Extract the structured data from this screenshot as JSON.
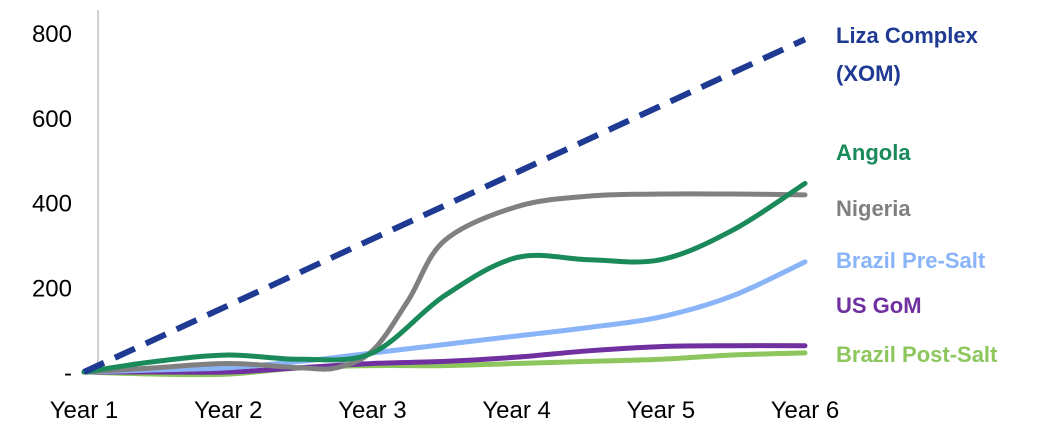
{
  "chart_data": {
    "type": "line",
    "categories": [
      "Year 1",
      "Year 2",
      "Year 3",
      "Year 4",
      "Year 5",
      "Year 6"
    ],
    "y_tick_labels": [
      "-",
      "200",
      "400",
      "600",
      "800"
    ],
    "y_tick_values": [
      0,
      200,
      400,
      600,
      800
    ],
    "ylim": [
      0,
      800
    ],
    "grid": false,
    "legend": "direct labels at right end of each line",
    "series": [
      {
        "name": "Liza Complex (XOM)",
        "label_lines": [
          "Liza Complex",
          "(XOM)"
        ],
        "color": "#1F3A93",
        "style": "dashed",
        "x": [
          1,
          6
        ],
        "y": [
          0,
          785
        ]
      },
      {
        "name": "Angola",
        "label_lines": [
          "Angola"
        ],
        "color": "#1B8A5A",
        "style": "solid",
        "x": [
          1,
          1.5,
          2,
          2.5,
          3,
          3.5,
          4,
          4.5,
          5,
          5.5,
          6
        ],
        "y": [
          0,
          25,
          40,
          30,
          45,
          180,
          270,
          265,
          265,
          335,
          445
        ]
      },
      {
        "name": "Nigeria",
        "label_lines": [
          "Nigeria"
        ],
        "color": "#808080",
        "style": "solid",
        "x": [
          1,
          1.5,
          2,
          2.5,
          2.75,
          3,
          3.25,
          3.5,
          4,
          4.5,
          5,
          5.5,
          6
        ],
        "y": [
          0,
          10,
          20,
          10,
          10,
          50,
          170,
          310,
          390,
          415,
          420,
          420,
          418
        ]
      },
      {
        "name": "Brazil Pre-Salt",
        "label_lines": [
          "Brazil Pre-Salt"
        ],
        "color": "#8AB4F8",
        "style": "solid",
        "x": [
          1,
          1.5,
          2,
          2.5,
          3,
          3.5,
          4,
          4.5,
          5,
          5.5,
          6
        ],
        "y": [
          0,
          5,
          10,
          25,
          45,
          65,
          85,
          105,
          130,
          180,
          260
        ]
      },
      {
        "name": "US GoM",
        "label_lines": [
          "US GoM"
        ],
        "color": "#7030A0",
        "style": "solid",
        "x": [
          1,
          1.5,
          2,
          2.5,
          3,
          3.5,
          4,
          4.5,
          5,
          5.5,
          6
        ],
        "y": [
          0,
          0,
          0,
          10,
          20,
          25,
          35,
          50,
          60,
          62,
          62
        ]
      },
      {
        "name": "Brazil Post-Salt",
        "label_lines": [
          "Brazil Post-Salt"
        ],
        "color": "#8CC65C",
        "style": "solid",
        "x": [
          1,
          1.5,
          2,
          2.5,
          3,
          3.5,
          4,
          4.5,
          5,
          5.5,
          6
        ],
        "y": [
          0,
          -5,
          -5,
          10,
          15,
          15,
          20,
          25,
          30,
          40,
          45
        ]
      }
    ]
  }
}
